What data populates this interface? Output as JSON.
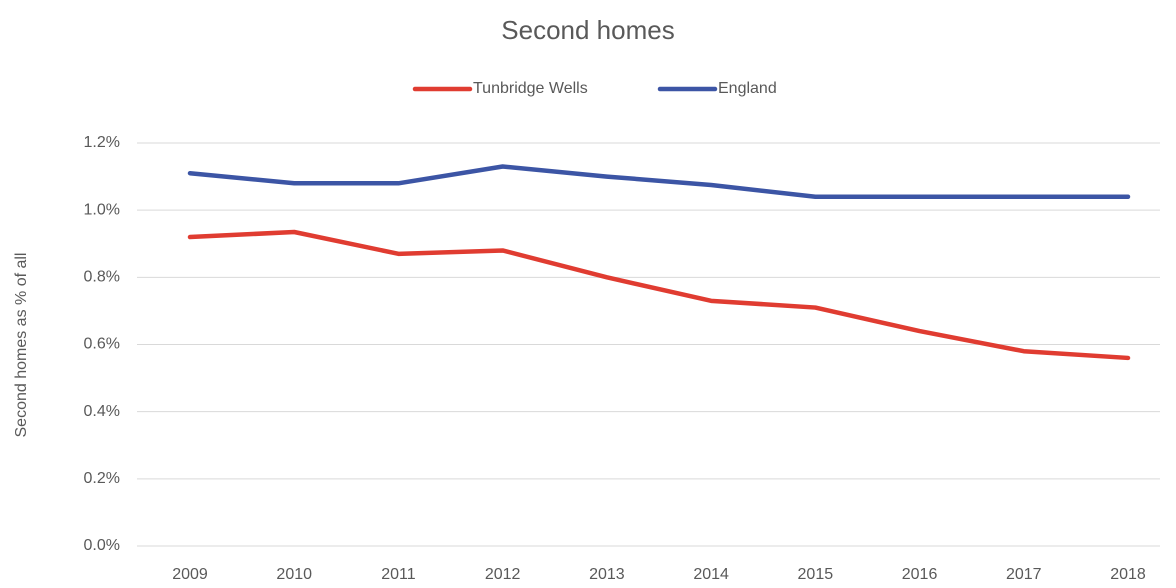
{
  "chart_data": {
    "type": "line",
    "title": "Second homes",
    "y_label": "Second homes as % of all",
    "categories": [
      "2009",
      "2010",
      "2011",
      "2012",
      "2013",
      "2014",
      "2015",
      "2016",
      "2017",
      "2018"
    ],
    "series": [
      {
        "name": "Tunbridge Wells",
        "color": "#e03c31",
        "values": [
          0.92,
          0.935,
          0.87,
          0.88,
          0.8,
          0.73,
          0.71,
          0.64,
          0.58,
          0.56
        ]
      },
      {
        "name": "England",
        "color": "#3c55a5",
        "values": [
          1.11,
          1.08,
          1.08,
          1.13,
          1.1,
          1.075,
          1.04,
          1.04,
          1.04,
          1.04
        ]
      }
    ],
    "ylim": [
      0,
      1.2
    ],
    "yticks": [
      {
        "value": 0,
        "label": "0.0%"
      },
      {
        "value": 0.2,
        "label": "0.2%"
      },
      {
        "value": 0.4,
        "label": "0.4%"
      },
      {
        "value": 0.6,
        "label": "0.6%"
      },
      {
        "value": 0.8,
        "label": "0.8%"
      },
      {
        "value": 1.0,
        "label": "1.0%"
      },
      {
        "value": 1.2,
        "label": "1.2%"
      }
    ],
    "grid": true,
    "legend": "top"
  }
}
